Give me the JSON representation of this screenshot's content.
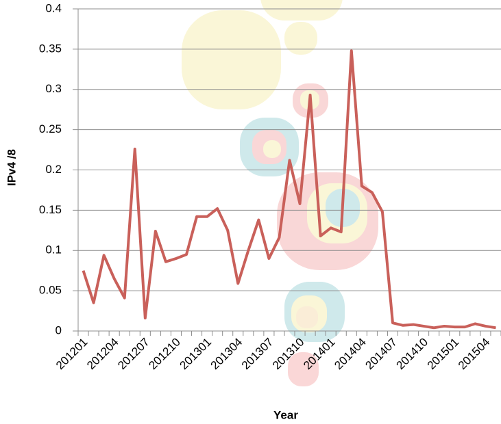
{
  "chart_data": {
    "type": "line",
    "x_label": "Year",
    "y_label": "IPv4 /8",
    "categories": [
      "201201",
      null,
      null,
      "201204",
      null,
      null,
      "201207",
      null,
      null,
      "201210",
      null,
      null,
      "201301",
      null,
      null,
      "201304",
      null,
      null,
      "201307",
      null,
      null,
      "201310",
      null,
      null,
      "201401",
      null,
      null,
      "201404",
      null,
      null,
      "201407",
      null,
      null,
      "201410",
      null,
      null,
      "201501",
      null,
      null,
      "201504",
      null
    ],
    "values": [
      0.075,
      0.035,
      0.094,
      0.065,
      0.041,
      0.226,
      0.016,
      0.124,
      0.086,
      0.09,
      0.095,
      0.142,
      0.142,
      0.152,
      0.125,
      0.059,
      0.1,
      0.138,
      0.09,
      0.116,
      0.212,
      0.158,
      0.293,
      0.118,
      0.128,
      0.123,
      0.348,
      0.18,
      0.172,
      0.148,
      0.01,
      0.007,
      0.008,
      0.006,
      0.004,
      0.006,
      0.005,
      0.005,
      0.009,
      0.006,
      0.004
    ],
    "color": "#c9605a",
    "ylim": [
      0,
      0.4
    ],
    "yticks": [
      0,
      0.05,
      0.1,
      0.15,
      0.2,
      0.25,
      0.3,
      0.35,
      0.4
    ],
    "grid": true
  }
}
